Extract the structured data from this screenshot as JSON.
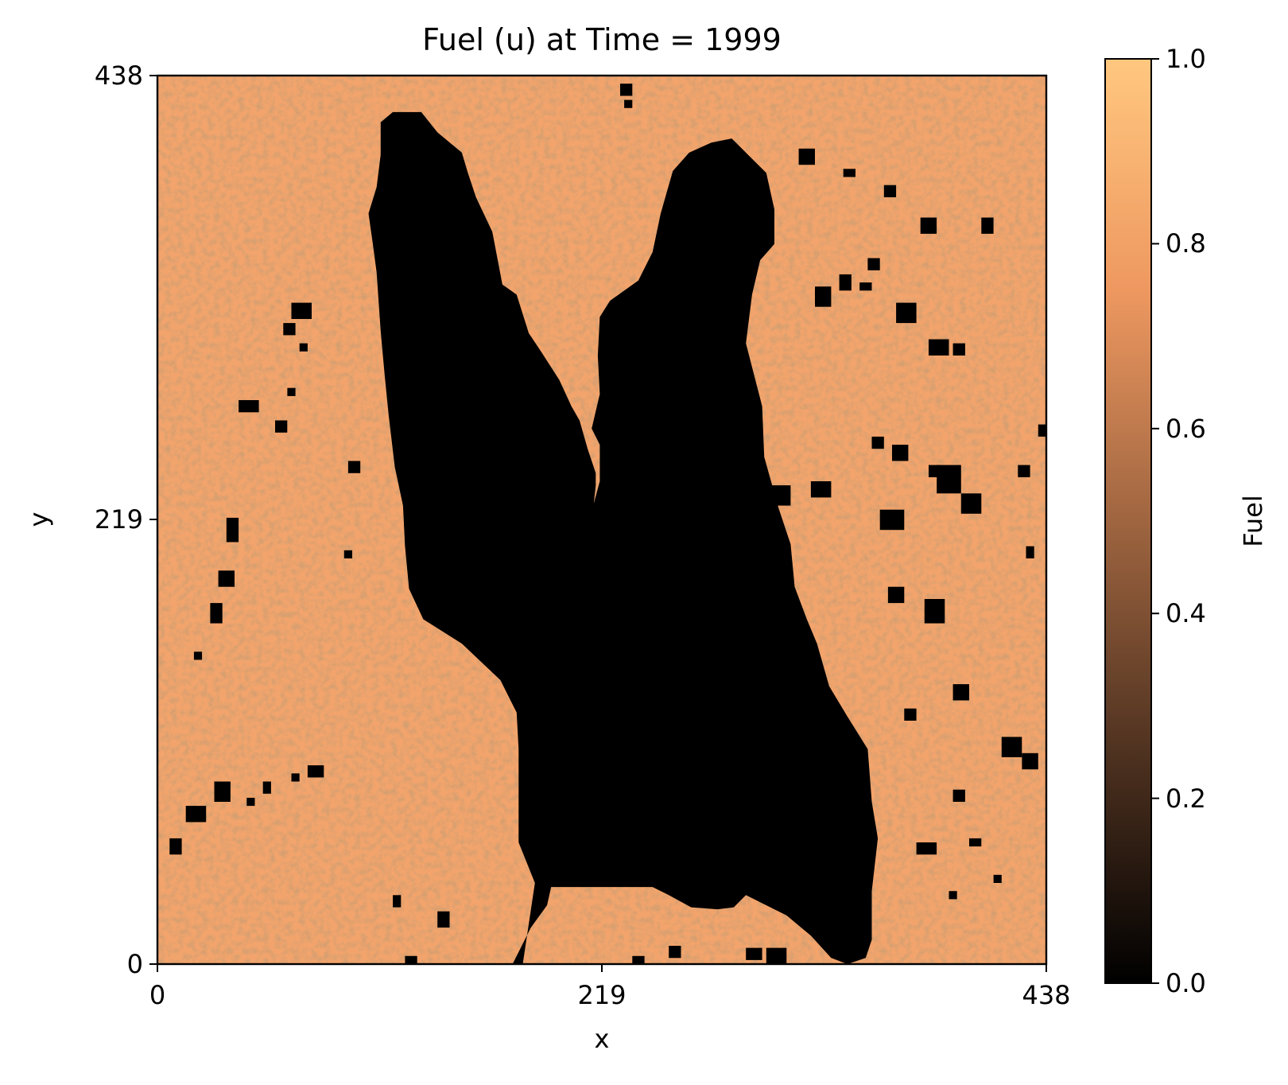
{
  "chart_data": {
    "type": "heatmap",
    "title": "Fuel (u) at Time = 1999",
    "xlabel": "x",
    "ylabel": "y",
    "xlim": [
      0,
      438
    ],
    "ylim": [
      0,
      438
    ],
    "x_ticks": [
      "0",
      "219",
      "438"
    ],
    "y_ticks": [
      "0",
      "219",
      "438"
    ],
    "colormap": "copper",
    "colormap_colors": [
      "#000000",
      "#ffc77f"
    ],
    "colorbar": {
      "label": "Fuel",
      "range": [
        0.0,
        1.0
      ],
      "ticks": [
        "0.0",
        "0.2",
        "0.4",
        "0.6",
        "0.8",
        "1.0"
      ]
    },
    "grid": false,
    "field_summary": {
      "unburned_fuel_value_range": [
        0.7,
        1.0
      ],
      "burned_value": 0.0,
      "burned_region_outline": [
        [
          130,
          420
        ],
        [
          138,
          410
        ],
        [
          150,
          400
        ],
        [
          153,
          390
        ],
        [
          157,
          378
        ],
        [
          165,
          361
        ],
        [
          170,
          335
        ],
        [
          177,
          330
        ],
        [
          183,
          311
        ],
        [
          189,
          302
        ],
        [
          198,
          288
        ],
        [
          204,
          275
        ],
        [
          208,
          268
        ],
        [
          212,
          254
        ],
        [
          216,
          242
        ],
        [
          216,
          236
        ],
        [
          215,
          227
        ],
        [
          218,
          238
        ],
        [
          218,
          256
        ],
        [
          214,
          264
        ],
        [
          218,
          281
        ],
        [
          217,
          300
        ],
        [
          218,
          319
        ],
        [
          223,
          327
        ],
        [
          237,
          337
        ],
        [
          244,
          351
        ],
        [
          248,
          370
        ],
        [
          254,
          391
        ],
        [
          262,
          400
        ],
        [
          273,
          405
        ],
        [
          283,
          407
        ],
        [
          292,
          398
        ],
        [
          300,
          390
        ],
        [
          304,
          372
        ],
        [
          304,
          355
        ],
        [
          297,
          347
        ],
        [
          293,
          330
        ],
        [
          290,
          306
        ],
        [
          298,
          275
        ],
        [
          299,
          250
        ],
        [
          306,
          225
        ],
        [
          312,
          207
        ],
        [
          314,
          186
        ],
        [
          320,
          170
        ],
        [
          325,
          158
        ],
        [
          331,
          137
        ],
        [
          340,
          122
        ],
        [
          350,
          106
        ],
        [
          352,
          80
        ],
        [
          355,
          62
        ],
        [
          352,
          36
        ],
        [
          352,
          12
        ],
        [
          349,
          3
        ],
        [
          340,
          0
        ],
        [
          332,
          3
        ],
        [
          322,
          14
        ],
        [
          310,
          24
        ],
        [
          290,
          34
        ],
        [
          284,
          28
        ],
        [
          276,
          27
        ],
        [
          263,
          28
        ],
        [
          252,
          34
        ],
        [
          244,
          38
        ],
        [
          194,
          38
        ],
        [
          192,
          29
        ],
        [
          184,
          18
        ],
        [
          175,
          0
        ],
        [
          180,
          0
        ],
        [
          186,
          40
        ],
        [
          178,
          60
        ],
        [
          178,
          80
        ],
        [
          178,
          106
        ],
        [
          177,
          124
        ],
        [
          169,
          140
        ],
        [
          150,
          158
        ],
        [
          131,
          170
        ],
        [
          124,
          185
        ],
        [
          122,
          206
        ],
        [
          121,
          226
        ],
        [
          117,
          245
        ],
        [
          114,
          270
        ],
        [
          112,
          290
        ],
        [
          110,
          312
        ],
        [
          108,
          341
        ],
        [
          106,
          356
        ],
        [
          104,
          370
        ],
        [
          108,
          383
        ],
        [
          110,
          399
        ],
        [
          110,
          415
        ],
        [
          116,
          420
        ]
      ]
    }
  }
}
